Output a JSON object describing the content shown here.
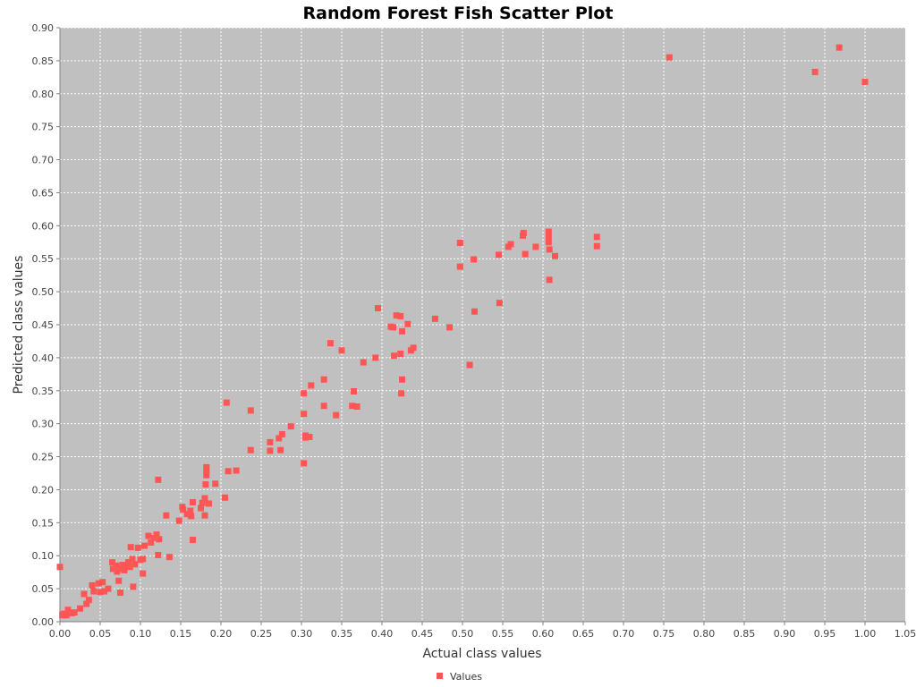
{
  "chart_data": {
    "type": "scatter",
    "title": "Random Forest Fish Scatter Plot",
    "xlabel": "Actual class values",
    "ylabel": "Predicted class values",
    "xlim": [
      0,
      1.05
    ],
    "ylim": [
      0,
      0.9
    ],
    "x_ticks": [
      "0.00",
      "0.05",
      "0.10",
      "0.15",
      "0.20",
      "0.25",
      "0.30",
      "0.35",
      "0.40",
      "0.45",
      "0.50",
      "0.55",
      "0.60",
      "0.65",
      "0.70",
      "0.75",
      "0.80",
      "0.85",
      "0.90",
      "0.95",
      "1.00",
      "1.05"
    ],
    "y_ticks": [
      "0.00",
      "0.05",
      "0.10",
      "0.15",
      "0.20",
      "0.25",
      "0.30",
      "0.35",
      "0.40",
      "0.45",
      "0.50",
      "0.55",
      "0.60",
      "0.65",
      "0.70",
      "0.75",
      "0.80",
      "0.85",
      "0.90"
    ],
    "grid": true,
    "legend_position": "bottom",
    "plot_background": "#c0c0c0",
    "series": [
      {
        "name": "Values",
        "color": "#ff5555",
        "points": [
          [
            0.0,
            0.083
          ],
          [
            0.003,
            0.01
          ],
          [
            0.005,
            0.012
          ],
          [
            0.008,
            0.01
          ],
          [
            0.01,
            0.018
          ],
          [
            0.015,
            0.013
          ],
          [
            0.018,
            0.014
          ],
          [
            0.025,
            0.02
          ],
          [
            0.03,
            0.042
          ],
          [
            0.033,
            0.027
          ],
          [
            0.036,
            0.033
          ],
          [
            0.04,
            0.055
          ],
          [
            0.042,
            0.046
          ],
          [
            0.048,
            0.058
          ],
          [
            0.05,
            0.045
          ],
          [
            0.053,
            0.06
          ],
          [
            0.055,
            0.046
          ],
          [
            0.06,
            0.05
          ],
          [
            0.065,
            0.09
          ],
          [
            0.066,
            0.08
          ],
          [
            0.07,
            0.085
          ],
          [
            0.071,
            0.076
          ],
          [
            0.073,
            0.062
          ],
          [
            0.075,
            0.08
          ],
          [
            0.075,
            0.044
          ],
          [
            0.078,
            0.086
          ],
          [
            0.08,
            0.078
          ],
          [
            0.082,
            0.085
          ],
          [
            0.085,
            0.09
          ],
          [
            0.087,
            0.083
          ],
          [
            0.088,
            0.113
          ],
          [
            0.09,
            0.095
          ],
          [
            0.091,
            0.053
          ],
          [
            0.093,
            0.087
          ],
          [
            0.097,
            0.112
          ],
          [
            0.1,
            0.094
          ],
          [
            0.103,
            0.073
          ],
          [
            0.103,
            0.095
          ],
          [
            0.105,
            0.115
          ],
          [
            0.11,
            0.13
          ],
          [
            0.113,
            0.12
          ],
          [
            0.117,
            0.127
          ],
          [
            0.12,
            0.132
          ],
          [
            0.122,
            0.215
          ],
          [
            0.122,
            0.101
          ],
          [
            0.123,
            0.125
          ],
          [
            0.132,
            0.161
          ],
          [
            0.136,
            0.098
          ],
          [
            0.148,
            0.153
          ],
          [
            0.152,
            0.174
          ],
          [
            0.153,
            0.17
          ],
          [
            0.158,
            0.163
          ],
          [
            0.162,
            0.168
          ],
          [
            0.163,
            0.16
          ],
          [
            0.165,
            0.181
          ],
          [
            0.165,
            0.124
          ],
          [
            0.175,
            0.172
          ],
          [
            0.177,
            0.18
          ],
          [
            0.18,
            0.161
          ],
          [
            0.18,
            0.187
          ],
          [
            0.181,
            0.208
          ],
          [
            0.182,
            0.222
          ],
          [
            0.182,
            0.228
          ],
          [
            0.182,
            0.234
          ],
          [
            0.185,
            0.179
          ],
          [
            0.193,
            0.209
          ],
          [
            0.205,
            0.188
          ],
          [
            0.207,
            0.332
          ],
          [
            0.209,
            0.228
          ],
          [
            0.219,
            0.229
          ],
          [
            0.237,
            0.32
          ],
          [
            0.237,
            0.26
          ],
          [
            0.261,
            0.272
          ],
          [
            0.261,
            0.259
          ],
          [
            0.272,
            0.278
          ],
          [
            0.274,
            0.26
          ],
          [
            0.276,
            0.284
          ],
          [
            0.287,
            0.296
          ],
          [
            0.303,
            0.24
          ],
          [
            0.303,
            0.346
          ],
          [
            0.303,
            0.315
          ],
          [
            0.305,
            0.282
          ],
          [
            0.305,
            0.279
          ],
          [
            0.31,
            0.28
          ],
          [
            0.312,
            0.358
          ],
          [
            0.328,
            0.367
          ],
          [
            0.328,
            0.327
          ],
          [
            0.336,
            0.422
          ],
          [
            0.343,
            0.313
          ],
          [
            0.35,
            0.411
          ],
          [
            0.363,
            0.327
          ],
          [
            0.365,
            0.349
          ],
          [
            0.369,
            0.326
          ],
          [
            0.377,
            0.393
          ],
          [
            0.392,
            0.4
          ],
          [
            0.395,
            0.475
          ],
          [
            0.411,
            0.447
          ],
          [
            0.414,
            0.446
          ],
          [
            0.415,
            0.403
          ],
          [
            0.418,
            0.464
          ],
          [
            0.423,
            0.463
          ],
          [
            0.423,
            0.406
          ],
          [
            0.424,
            0.346
          ],
          [
            0.425,
            0.367
          ],
          [
            0.425,
            0.44
          ],
          [
            0.432,
            0.451
          ],
          [
            0.436,
            0.411
          ],
          [
            0.439,
            0.415
          ],
          [
            0.466,
            0.459
          ],
          [
            0.484,
            0.446
          ],
          [
            0.497,
            0.574
          ],
          [
            0.497,
            0.538
          ],
          [
            0.509,
            0.389
          ],
          [
            0.514,
            0.549
          ],
          [
            0.515,
            0.47
          ],
          [
            0.545,
            0.556
          ],
          [
            0.546,
            0.483
          ],
          [
            0.557,
            0.568
          ],
          [
            0.56,
            0.572
          ],
          [
            0.575,
            0.585
          ],
          [
            0.576,
            0.589
          ],
          [
            0.578,
            0.557
          ],
          [
            0.591,
            0.568
          ],
          [
            0.607,
            0.591
          ],
          [
            0.607,
            0.583
          ],
          [
            0.607,
            0.575
          ],
          [
            0.608,
            0.564
          ],
          [
            0.608,
            0.518
          ],
          [
            0.615,
            0.554
          ],
          [
            0.667,
            0.583
          ],
          [
            0.667,
            0.569
          ],
          [
            0.757,
            0.855
          ],
          [
            0.938,
            0.833
          ],
          [
            0.968,
            0.87
          ],
          [
            1.0,
            0.818
          ]
        ]
      }
    ]
  }
}
